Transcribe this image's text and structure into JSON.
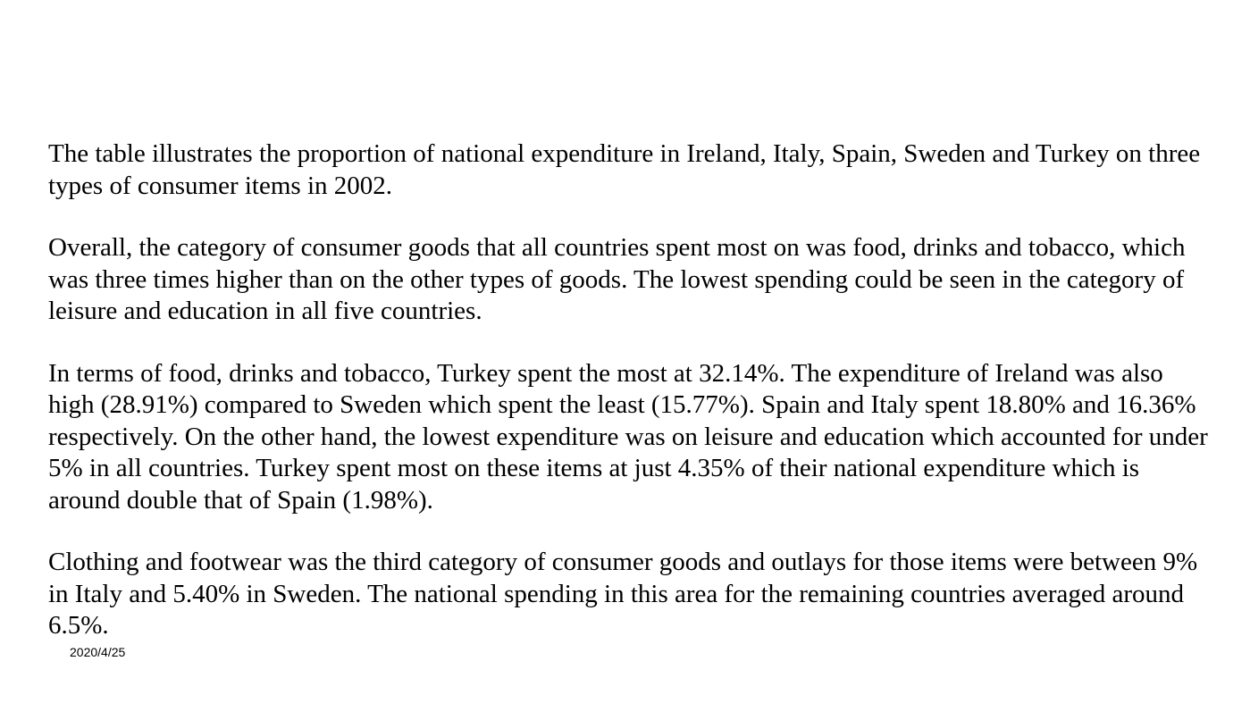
{
  "slide": {
    "paragraphs": [
      "The table illustrates the proportion of national expenditure in Ireland, Italy, Spain, Sweden and Turkey on three types of consumer items in 2002.",
      "Overall, the category of consumer goods that all countries spent most on was food, drinks and tobacco, which was three times higher than on the other types of goods. The lowest spending could be seen in the category of leisure and education in all five countries.",
      "In terms of food, drinks and tobacco, Turkey spent the most at 32.14%. The expenditure of Ireland was also high (28.91%) compared to Sweden which spent the least (15.77%). Spain and Italy spent 18.80% and 16.36% respectively. On the other hand, the lowest expenditure was on leisure and education which accounted for under 5% in all countries. Turkey spent most on these items at just 4.35% of their national expenditure which is around double that of Spain (1.98%).",
      "Clothing and footwear was the third category of consumer goods and outlays for those items were between 9% in Italy and 5.40% in Sweden.  The national spending in this area for the remaining countries averaged around 6.5%."
    ],
    "footer": {
      "date": "2020/4/25"
    }
  }
}
